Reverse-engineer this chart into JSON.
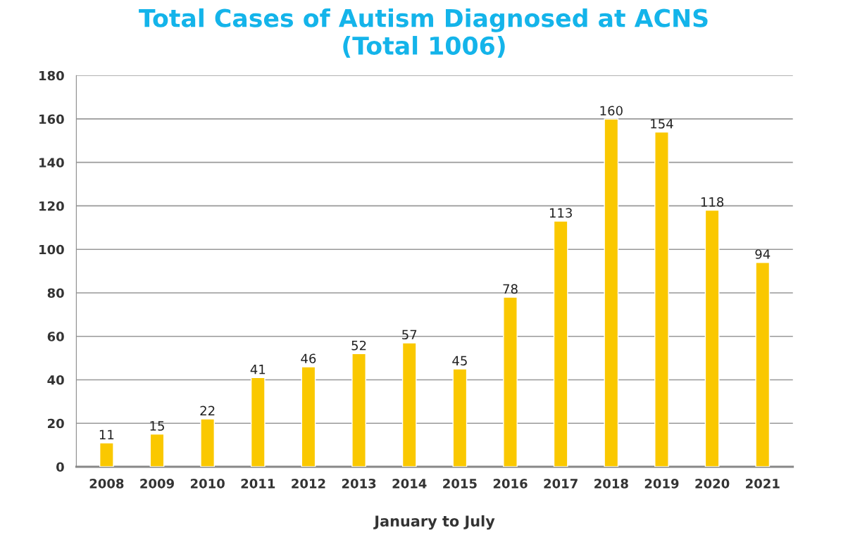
{
  "chart_data": {
    "type": "bar",
    "title": "Total Cases of Autism Diagnosed at ACNS\n(Total 1006)",
    "categories": [
      "2008",
      "2009",
      "2010",
      "2011",
      "2012",
      "2013",
      "2014",
      "2015",
      "2016",
      "2017",
      "2018",
      "2019",
      "2020",
      "2021"
    ],
    "values": [
      11,
      15,
      22,
      41,
      46,
      52,
      57,
      45,
      78,
      113,
      160,
      154,
      118,
      94
    ],
    "data_labels": true,
    "color": "#fac800",
    "xlabel": "January to July",
    "ylim": [
      0,
      180
    ],
    "yticks": [
      0,
      20,
      40,
      60,
      80,
      100,
      120,
      140,
      160,
      180
    ],
    "grid": "y"
  }
}
